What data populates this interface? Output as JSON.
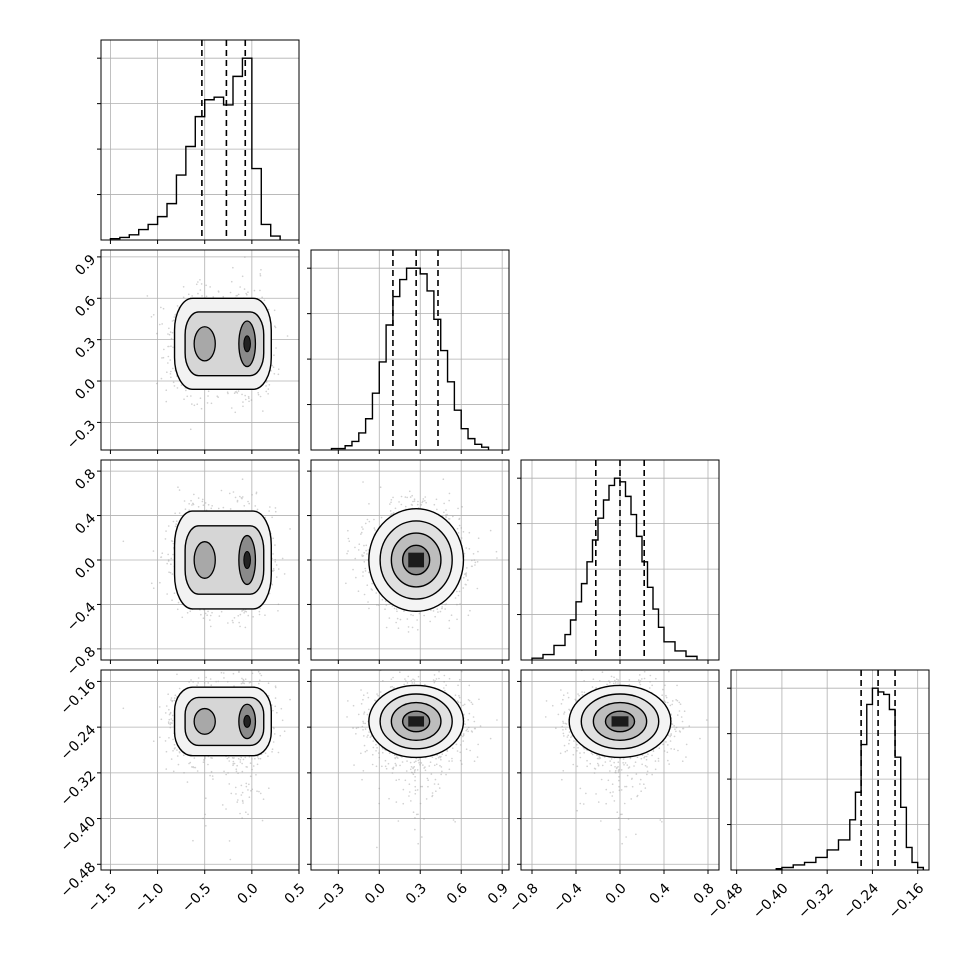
{
  "chart_data": {
    "type": "corner",
    "grid": true,
    "variables": [
      {
        "xticks": [
          "−1.5",
          "−1.0",
          "−0.5",
          "0.0",
          "0.5"
        ],
        "xtick_values": [
          -1.5,
          -1.0,
          -0.5,
          0.0,
          0.5
        ],
        "range": [
          -1.6,
          0.5
        ],
        "quantiles": [
          -0.53,
          -0.27,
          -0.07
        ],
        "histogram": {
          "edges": [
            -1.5,
            -1.4,
            -1.3,
            -1.2,
            -1.1,
            -1.0,
            -0.9,
            -0.8,
            -0.7,
            -0.6,
            -0.5,
            -0.4,
            -0.3,
            -0.2,
            -0.1,
            0.0,
            0.1,
            0.2,
            0.3
          ],
          "counts": [
            1,
            2,
            4,
            8,
            12,
            18,
            28,
            50,
            72,
            95,
            108,
            110,
            104,
            126,
            140,
            55,
            12,
            3
          ]
        }
      },
      {
        "ticks": [
          "−0.3",
          "0.0",
          "0.3",
          "0.6",
          "0.9"
        ],
        "tick_values": [
          -0.3,
          0.0,
          0.3,
          0.6,
          0.9
        ],
        "range": [
          -0.5,
          0.95
        ],
        "quantiles": [
          0.1,
          0.27,
          0.43
        ],
        "histogram": {
          "edges": [
            -0.35,
            -0.25,
            -0.2,
            -0.15,
            -0.1,
            -0.05,
            0.0,
            0.05,
            0.1,
            0.15,
            0.2,
            0.25,
            0.3,
            0.35,
            0.4,
            0.45,
            0.5,
            0.55,
            0.6,
            0.65,
            0.7,
            0.75,
            0.8
          ],
          "counts": [
            1,
            3,
            6,
            12,
            22,
            40,
            62,
            88,
            108,
            120,
            128,
            128,
            124,
            112,
            92,
            70,
            48,
            28,
            15,
            8,
            4,
            2
          ]
        }
      },
      {
        "ticks": [
          "−0.8",
          "−0.4",
          "0.0",
          "0.4",
          "0.8"
        ],
        "tick_values": [
          -0.8,
          -0.4,
          0.0,
          0.4,
          0.8
        ],
        "range": [
          -0.9,
          0.9
        ],
        "quantiles": [
          -0.22,
          0.0,
          0.22
        ],
        "histogram": {
          "edges": [
            -0.8,
            -0.7,
            -0.6,
            -0.5,
            -0.45,
            -0.4,
            -0.35,
            -0.3,
            -0.25,
            -0.2,
            -0.15,
            -0.1,
            -0.05,
            0.0,
            0.05,
            0.1,
            0.15,
            0.2,
            0.25,
            0.3,
            0.35,
            0.4,
            0.5,
            0.6,
            0.7
          ],
          "counts": [
            1,
            3,
            8,
            14,
            22,
            32,
            42,
            54,
            66,
            78,
            88,
            96,
            100,
            98,
            90,
            80,
            68,
            54,
            40,
            28,
            18,
            10,
            5,
            2
          ]
        }
      },
      {
        "xticks": [
          "−0.48",
          "−0.40",
          "−0.32",
          "−0.24",
          "−0.16"
        ],
        "xtick_values": [
          -0.48,
          -0.4,
          -0.32,
          -0.24,
          -0.16
        ],
        "yticks": [
          "−0.16",
          "−0.24",
          "−0.32",
          "−0.40",
          "−0.48"
        ],
        "ytick_values": [
          -0.16,
          -0.24,
          -0.32,
          -0.4,
          -0.48
        ],
        "range": [
          -0.49,
          -0.14
        ],
        "quantiles": [
          -0.26,
          -0.23,
          -0.2
        ],
        "histogram": {
          "edges": [
            -0.41,
            -0.4,
            -0.38,
            -0.36,
            -0.34,
            -0.32,
            -0.3,
            -0.28,
            -0.27,
            -0.26,
            -0.25,
            -0.24,
            -0.23,
            -0.22,
            -0.21,
            -0.2,
            -0.19,
            -0.18,
            -0.17,
            -0.16,
            -0.15
          ],
          "counts": [
            1,
            2,
            4,
            6,
            10,
            16,
            24,
            40,
            62,
            100,
            132,
            145,
            142,
            140,
            128,
            90,
            50,
            18,
            6,
            2
          ]
        }
      }
    ],
    "pairs": [
      {
        "row": 1,
        "col": 0,
        "rho": 0.0,
        "bimodal": true
      },
      {
        "row": 2,
        "col": 0,
        "rho": 0.0,
        "bimodal": true
      },
      {
        "row": 2,
        "col": 1,
        "rho": 0.0,
        "bimodal": false
      },
      {
        "row": 3,
        "col": 0,
        "rho": 0.0,
        "bimodal": true
      },
      {
        "row": 3,
        "col": 1,
        "rho": 0.0,
        "bimodal": false
      },
      {
        "row": 3,
        "col": 2,
        "rho": 0.0,
        "bimodal": false
      }
    ]
  }
}
